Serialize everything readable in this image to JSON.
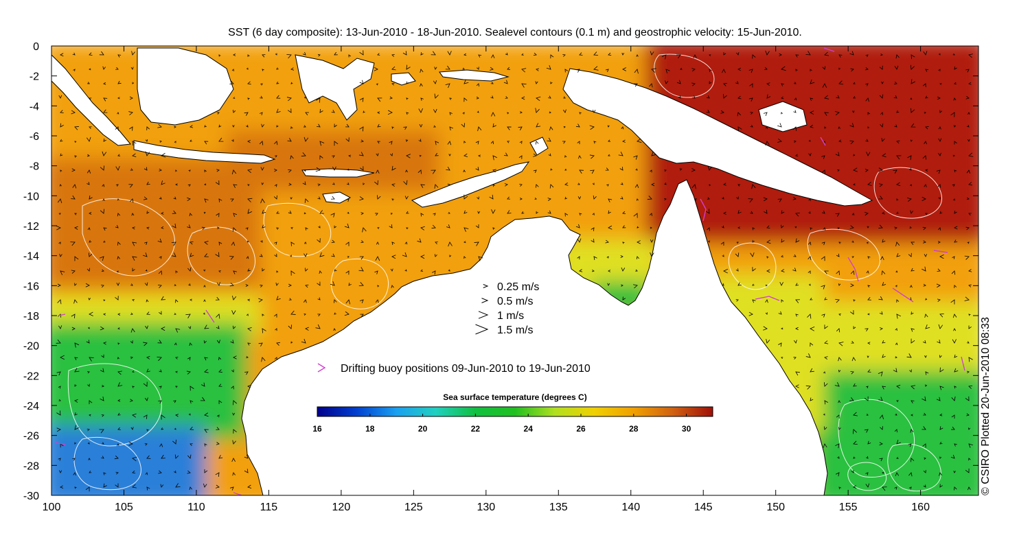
{
  "title": "SST (6 day composite): 13-Jun-2010 - 18-Jun-2010. Sealevel contours (0.1 m) and geostrophic velocity: 15-Jun-2010.",
  "credit": "© CSIRO Plotted 20-Jun-2010 08:33",
  "x_axis": {
    "min": 100,
    "max": 164,
    "ticks": [
      "100",
      "105",
      "110",
      "115",
      "120",
      "125",
      "130",
      "135",
      "140",
      "145",
      "150",
      "155",
      "160"
    ]
  },
  "y_axis": {
    "min": -30,
    "max": 0,
    "ticks": [
      "0",
      "-2",
      "-4",
      "-6",
      "-8",
      "-10",
      "-12",
      "-14",
      "-16",
      "-18",
      "-20",
      "-22",
      "-24",
      "-26",
      "-28",
      "-30"
    ]
  },
  "velocity_legend": [
    {
      "label": "0.25 m/s",
      "speed": 0.25
    },
    {
      "label": "0.5 m/s",
      "speed": 0.5
    },
    {
      "label": "1 m/s",
      "speed": 1
    },
    {
      "label": "1.5 m/s",
      "speed": 1.5
    }
  ],
  "buoy_legend": {
    "label": "Drifting buoy positions 09-Jun-2010 to 19-Jun-2010",
    "color": "#d040d0"
  },
  "colorbar": {
    "title": "Sea surface temperature (degrees C)",
    "min": 16,
    "max": 31,
    "ticks": [
      "16",
      "18",
      "20",
      "22",
      "24",
      "26",
      "28",
      "30"
    ],
    "colors": [
      "#00008b",
      "#0040d0",
      "#1aa0f0",
      "#20d0c0",
      "#10c040",
      "#20c020",
      "#b0e020",
      "#f0d000",
      "#f0a000",
      "#d06010",
      "#a01008"
    ]
  },
  "colors": {
    "land": "#ffffff",
    "coast": "#000000",
    "sst_cool": "#2a7fd8",
    "sst_green": "#2cc040",
    "sst_yellow": "#e0e020",
    "sst_orange": "#f2a010",
    "sst_dorange": "#d8760f",
    "sst_red": "#b01a08",
    "contour": "#ffffff"
  }
}
